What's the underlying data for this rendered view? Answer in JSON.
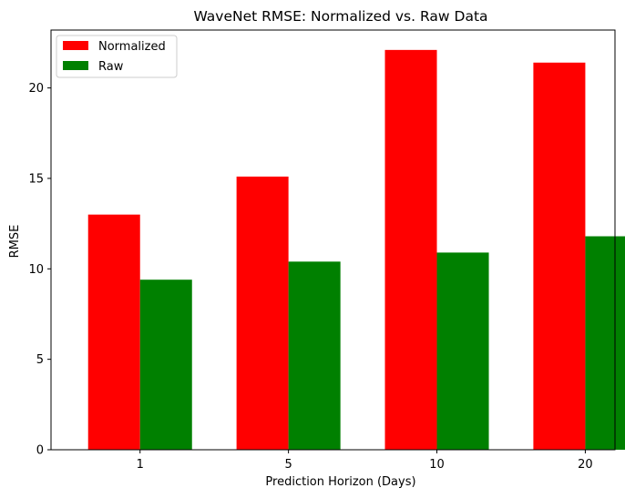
{
  "chart_data": {
    "type": "bar",
    "title": "WaveNet RMSE: Normalized vs. Raw Data",
    "xlabel": "Prediction Horizon (Days)",
    "ylabel": "RMSE",
    "categories": [
      "1",
      "5",
      "10",
      "20"
    ],
    "series": [
      {
        "name": "Normalized",
        "color": "#ff0000",
        "values": [
          13.0,
          15.1,
          22.1,
          21.4
        ]
      },
      {
        "name": "Raw",
        "color": "#008000",
        "values": [
          9.4,
          10.4,
          10.9,
          11.8
        ]
      }
    ],
    "ylim": [
      0,
      23.2
    ],
    "yticks": [
      0,
      5,
      10,
      15,
      20
    ],
    "grid": false,
    "legend_position": "top-left"
  }
}
